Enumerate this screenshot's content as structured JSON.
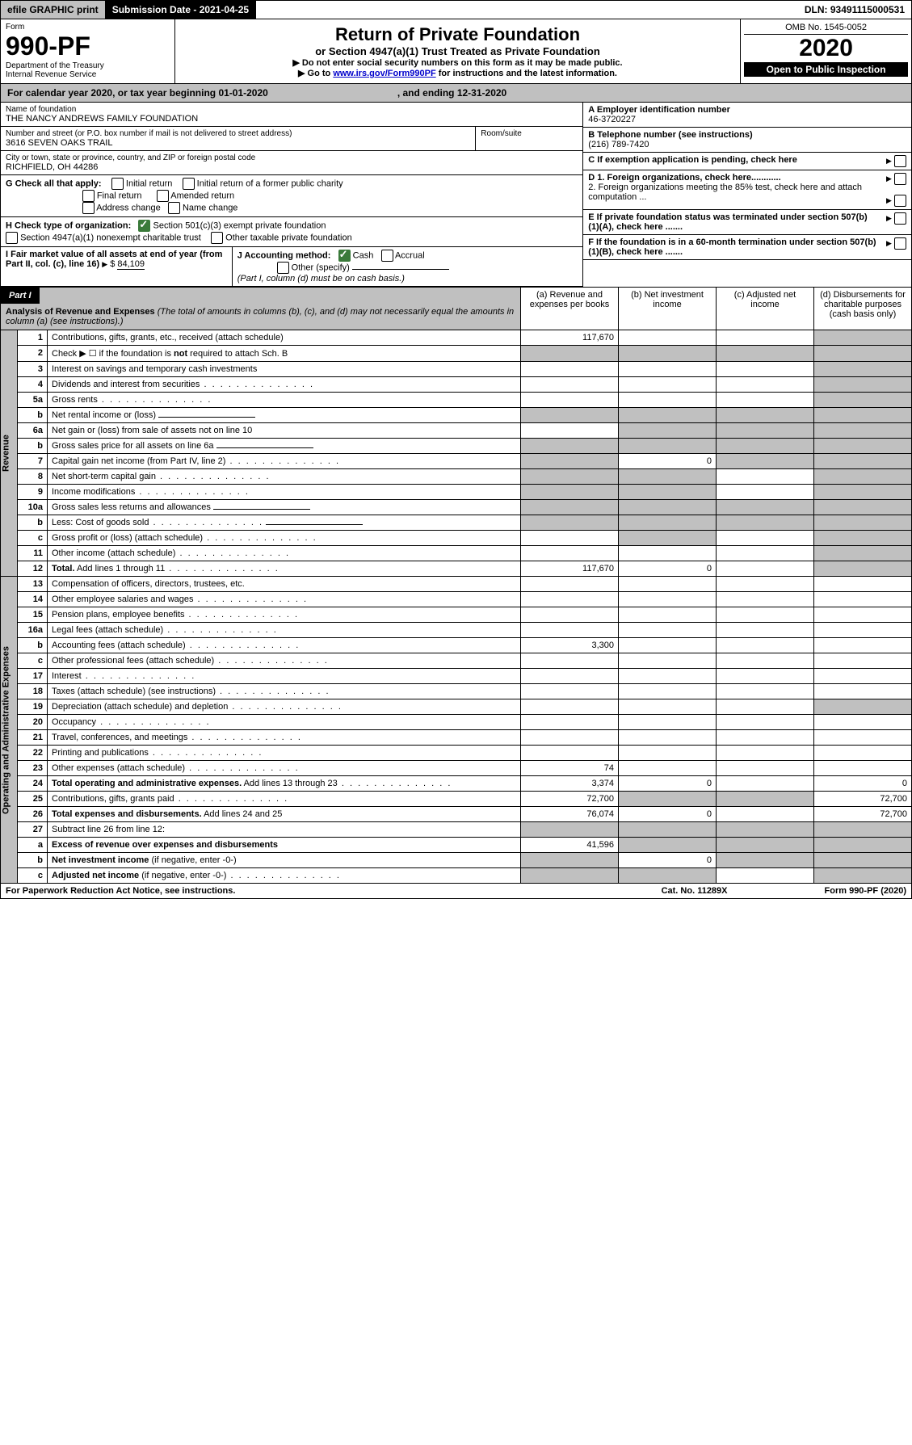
{
  "top": {
    "efile": "efile GRAPHIC print",
    "submission": "Submission Date - 2021-04-25",
    "dln": "DLN: 93491115000531"
  },
  "header": {
    "form": "Form",
    "form_no": "990-PF",
    "dept": "Department of the Treasury",
    "irs": "Internal Revenue Service",
    "title": "Return of Private Foundation",
    "subtitle": "or Section 4947(a)(1) Trust Treated as Private Foundation",
    "instr1": "▶ Do not enter social security numbers on this form as it may be made public.",
    "instr2_pre": "▶ Go to ",
    "instr2_link": "www.irs.gov/Form990PF",
    "instr2_post": " for instructions and the latest information.",
    "omb": "OMB No. 1545-0052",
    "year": "2020",
    "open": "Open to Public Inspection"
  },
  "cal": {
    "left": "For calendar year 2020, or tax year beginning 01-01-2020",
    "right": ", and ending 12-31-2020"
  },
  "info": {
    "name_label": "Name of foundation",
    "name": "THE NANCY ANDREWS FAMILY FOUNDATION",
    "addr_label": "Number and street (or P.O. box number if mail is not delivered to street address)",
    "addr": "3616 SEVEN OAKS TRAIL",
    "room_label": "Room/suite",
    "city_label": "City or town, state or province, country, and ZIP or foreign postal code",
    "city": "RICHFIELD, OH  44286",
    "a_label": "A Employer identification number",
    "a_val": "46-3720227",
    "b_label": "B Telephone number (see instructions)",
    "b_val": "(216) 789-7420",
    "c_label": "C If exemption application is pending, check here",
    "d1": "D 1. Foreign organizations, check here............",
    "d2": "2. Foreign organizations meeting the 85% test, check here and attach computation ...",
    "e": "E If private foundation status was terminated under section 507(b)(1)(A), check here .......",
    "f": "F If the foundation is in a 60-month termination under section 507(b)(1)(B), check here .......",
    "g_label": "G Check all that apply:",
    "g_opts": [
      "Initial return",
      "Initial return of a former public charity",
      "Final return",
      "Amended return",
      "Address change",
      "Name change"
    ],
    "h_label": "H Check type of organization:",
    "h_opts": [
      "Section 501(c)(3) exempt private foundation",
      "Section 4947(a)(1) nonexempt charitable trust",
      "Other taxable private foundation"
    ],
    "i_label": "I Fair market value of all assets at end of year (from Part II, col. (c), line 16)",
    "i_val": "84,109",
    "j_label": "J Accounting method:",
    "j_cash": "Cash",
    "j_accrual": "Accrual",
    "j_other": "Other (specify)",
    "j_note": "(Part I, column (d) must be on cash basis.)"
  },
  "part1": {
    "label": "Part I",
    "title": "Analysis of Revenue and Expenses",
    "title_note": "(The total of amounts in columns (b), (c), and (d) may not necessarily equal the amounts in column (a) (see instructions).)",
    "cols": {
      "a": "(a) Revenue and expenses per books",
      "b": "(b) Net investment income",
      "c": "(c) Adjusted net income",
      "d": "(d) Disbursements for charitable purposes (cash basis only)"
    }
  },
  "sections": {
    "revenue": "Revenue",
    "expenses": "Operating and Administrative Expenses"
  },
  "rows": [
    {
      "n": "1",
      "d": "Contributions, gifts, grants, etc., received (attach schedule)",
      "a": "117,670",
      "shade": [
        "d"
      ]
    },
    {
      "n": "2",
      "d": "Check ▶ ☐ if the foundation is <b>not</b> required to attach Sch. B",
      "emptyrow": true,
      "shade": [
        "a",
        "b",
        "c",
        "d"
      ]
    },
    {
      "n": "3",
      "d": "Interest on savings and temporary cash investments",
      "shade": [
        "d"
      ]
    },
    {
      "n": "4",
      "d": "Dividends and interest from securities",
      "dots": true,
      "shade": [
        "d"
      ]
    },
    {
      "n": "5a",
      "d": "Gross rents",
      "dots": true,
      "shade": [
        "d"
      ]
    },
    {
      "n": "b",
      "d": "Net rental income or (loss)",
      "inline": true,
      "shade": [
        "a",
        "b",
        "c",
        "d"
      ]
    },
    {
      "n": "6a",
      "d": "Net gain or (loss) from sale of assets not on line 10",
      "shade": [
        "b",
        "c",
        "d"
      ]
    },
    {
      "n": "b",
      "d": "Gross sales price for all assets on line 6a",
      "inline": true,
      "shade": [
        "a",
        "b",
        "c",
        "d"
      ]
    },
    {
      "n": "7",
      "d": "Capital gain net income (from Part IV, line 2)",
      "dots": true,
      "b": "0",
      "shade": [
        "a",
        "c",
        "d"
      ]
    },
    {
      "n": "8",
      "d": "Net short-term capital gain",
      "dots": true,
      "shade": [
        "a",
        "b",
        "d"
      ]
    },
    {
      "n": "9",
      "d": "Income modifications",
      "dots": true,
      "shade": [
        "a",
        "b",
        "d"
      ]
    },
    {
      "n": "10a",
      "d": "Gross sales less returns and allowances",
      "inline": true,
      "shade": [
        "a",
        "b",
        "c",
        "d"
      ]
    },
    {
      "n": "b",
      "d": "Less: Cost of goods sold",
      "dots": true,
      "inline": true,
      "shade": [
        "a",
        "b",
        "c",
        "d"
      ]
    },
    {
      "n": "c",
      "d": "Gross profit or (loss) (attach schedule)",
      "dots": true,
      "shade": [
        "b",
        "d"
      ]
    },
    {
      "n": "11",
      "d": "Other income (attach schedule)",
      "dots": true,
      "shade": [
        "d"
      ]
    },
    {
      "n": "12",
      "d": "<b>Total.</b> Add lines 1 through 11",
      "dots": true,
      "a": "117,670",
      "b": "0",
      "shade": [
        "d"
      ]
    }
  ],
  "exp_rows": [
    {
      "n": "13",
      "d": "Compensation of officers, directors, trustees, etc."
    },
    {
      "n": "14",
      "d": "Other employee salaries and wages",
      "dots": true
    },
    {
      "n": "15",
      "d": "Pension plans, employee benefits",
      "dots": true
    },
    {
      "n": "16a",
      "d": "Legal fees (attach schedule)",
      "dots": true
    },
    {
      "n": "b",
      "d": "Accounting fees (attach schedule)",
      "dots": true,
      "a": "3,300"
    },
    {
      "n": "c",
      "d": "Other professional fees (attach schedule)",
      "dots": true
    },
    {
      "n": "17",
      "d": "Interest",
      "dots": true
    },
    {
      "n": "18",
      "d": "Taxes (attach schedule) (see instructions)",
      "dots": true
    },
    {
      "n": "19",
      "d": "Depreciation (attach schedule) and depletion",
      "dots": true,
      "shade": [
        "d"
      ]
    },
    {
      "n": "20",
      "d": "Occupancy",
      "dots": true
    },
    {
      "n": "21",
      "d": "Travel, conferences, and meetings",
      "dots": true
    },
    {
      "n": "22",
      "d": "Printing and publications",
      "dots": true
    },
    {
      "n": "23",
      "d": "Other expenses (attach schedule)",
      "dots": true,
      "a": "74"
    },
    {
      "n": "24",
      "d": "<b>Total operating and administrative expenses.</b> Add lines 13 through 23",
      "dots": true,
      "a": "3,374",
      "b": "0",
      "dd": "0"
    },
    {
      "n": "25",
      "d": "Contributions, gifts, grants paid",
      "dots": true,
      "a": "72,700",
      "shade": [
        "b",
        "c"
      ],
      "dd": "72,700"
    },
    {
      "n": "26",
      "d": "<b>Total expenses and disbursements.</b> Add lines 24 and 25",
      "a": "76,074",
      "b": "0",
      "dd": "72,700"
    },
    {
      "n": "27",
      "d": "Subtract line 26 from line 12:",
      "shade": [
        "a",
        "b",
        "c",
        "d"
      ]
    },
    {
      "n": "a",
      "d": "<b>Excess of revenue over expenses and disbursements</b>",
      "a": "41,596",
      "shade": [
        "b",
        "c",
        "d"
      ]
    },
    {
      "n": "b",
      "d": "<b>Net investment income</b> (if negative, enter -0-)",
      "b": "0",
      "shade": [
        "a",
        "c",
        "d"
      ]
    },
    {
      "n": "c",
      "d": "<b>Adjusted net income</b> (if negative, enter -0-)",
      "dots": true,
      "shade": [
        "a",
        "b",
        "d"
      ]
    }
  ],
  "footer": {
    "left": "For Paperwork Reduction Act Notice, see instructions.",
    "mid": "Cat. No. 11289X",
    "right": "Form 990-PF (2020)"
  }
}
